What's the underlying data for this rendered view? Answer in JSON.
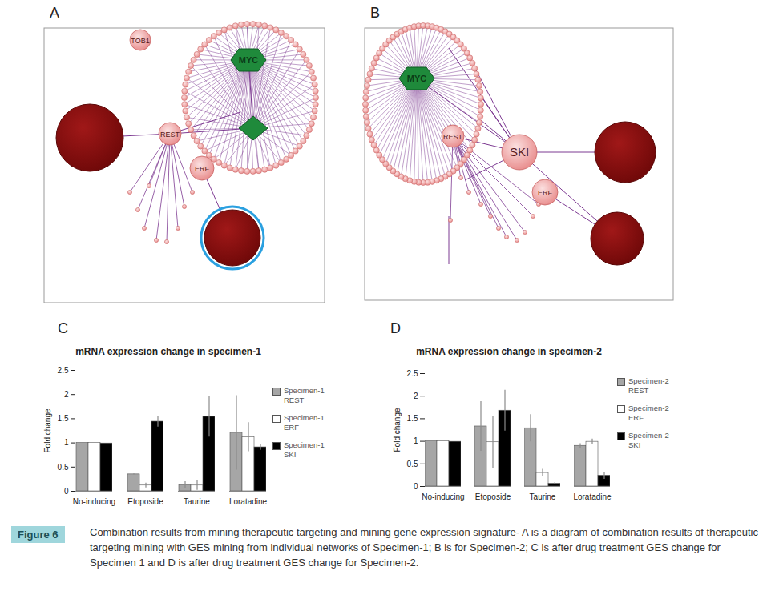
{
  "figure": {
    "label": "Figure 6",
    "caption": "Combination results from mining therapeutic targeting and mining gene expression signature- A is a diagram of combination results of therapeutic targeting mining with GES mining from individual networks of Specimen-1; B is for Specimen-2; C is after drug treatment GES change for Specimen 1 and D is after drug treatment GES change for Specimen-2."
  },
  "networks": [
    {
      "panel": "A",
      "nodes": [
        {
          "label": "TOB1"
        },
        {
          "label": "MYC"
        },
        {
          "label": "REST"
        },
        {
          "label": "ERF"
        }
      ]
    },
    {
      "panel": "B",
      "nodes": [
        {
          "label": "MYC"
        },
        {
          "label": "REST"
        },
        {
          "label": "SKI"
        },
        {
          "label": "ERF"
        }
      ]
    }
  ],
  "chart_data": [
    {
      "panel": "C",
      "type": "bar",
      "title": "mRNA expression change in specimen-1",
      "y_label": "Fold change",
      "categories": [
        "No-inducing",
        "Etoposide",
        "Taurine",
        "Loratadine"
      ],
      "series": [
        {
          "name": "Specimen-1 REST",
          "color": "#a6a6a6",
          "values": [
            1,
            0.35,
            0.13,
            1.21
          ],
          "errors": [
            0,
            0.01,
            0.07,
            0.77
          ]
        },
        {
          "name": "Specimen-1 ERF",
          "color": "#ffffff",
          "values": [
            1,
            0.12,
            0.12,
            1.12
          ],
          "errors": [
            0,
            0.05,
            0.1,
            0.3
          ]
        },
        {
          "name": "Specimen-1 SKI",
          "color": "#000000",
          "values": [
            0.99,
            1.44,
            1.54,
            0.91
          ],
          "errors": [
            0,
            0.11,
            0.42,
            0.06
          ]
        }
      ],
      "ylim": [
        0,
        2.5
      ],
      "yticks": [
        0,
        0.5,
        1,
        1.5,
        2,
        2.5
      ],
      "grid": false,
      "legend": "right"
    },
    {
      "panel": "D",
      "type": "bar",
      "title": "mRNA expression change in specimen-2",
      "y_label": "Fold change",
      "categories": [
        "No-inducing",
        "Etoposide",
        "Taurine",
        "Loratadine"
      ],
      "series": [
        {
          "name": "Specimen-2 REST",
          "color": "#a6a6a6",
          "values": [
            1,
            1.33,
            1.29,
            0.9
          ],
          "errors": [
            0,
            0.55,
            0.3,
            0.05
          ]
        },
        {
          "name": "Specimen-2 ERF",
          "color": "#ffffff",
          "values": [
            1,
            0.98,
            0.3,
            0.99
          ],
          "errors": [
            0,
            0.57,
            0.08,
            0.06
          ]
        },
        {
          "name": "Specimen-2 SKI",
          "color": "#000000",
          "values": [
            0.99,
            1.68,
            0.06,
            0.24
          ],
          "errors": [
            0,
            0.45,
            0.02,
            0.08
          ]
        }
      ],
      "ylim": [
        0,
        2.5
      ],
      "yticks": [
        0,
        0.5,
        1,
        1.5,
        2,
        2.5
      ],
      "grid": false,
      "legend": "right"
    }
  ]
}
